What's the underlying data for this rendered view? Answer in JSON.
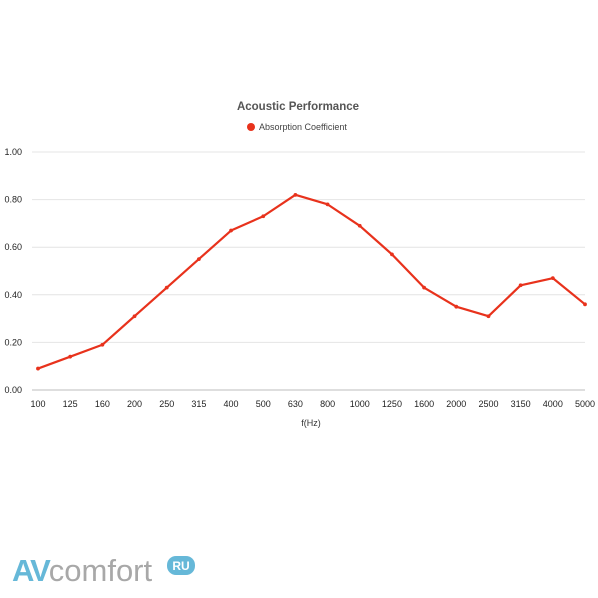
{
  "chart_data": {
    "type": "line",
    "title": "Acoustic Performance",
    "xlabel": "f(Hz)",
    "ylabel": "",
    "categories": [
      "100",
      "125",
      "160",
      "200",
      "250",
      "315",
      "400",
      "500",
      "630",
      "800",
      "1000",
      "1250",
      "1600",
      "2000",
      "2500",
      "3150",
      "4000",
      "5000"
    ],
    "series": [
      {
        "name": "Absorption Coefficient",
        "color": "#e8321c",
        "values": [
          0.09,
          0.14,
          0.19,
          0.31,
          0.43,
          0.55,
          0.67,
          0.73,
          0.82,
          0.78,
          0.69,
          0.57,
          0.43,
          0.35,
          0.31,
          0.44,
          0.47,
          0.36
        ]
      }
    ],
    "ylim": [
      0,
      1
    ],
    "yticks": [
      "0.00",
      "0.20",
      "0.40",
      "0.60",
      "0.80",
      "1.00"
    ],
    "grid": true,
    "legend": "top-center"
  },
  "watermark": {
    "brand": "AVcomfort",
    "domain": "RU",
    "colors": {
      "av": "#66b8d8",
      "comfort": "#a8a8a8",
      "badge": "#66b8d8"
    }
  }
}
